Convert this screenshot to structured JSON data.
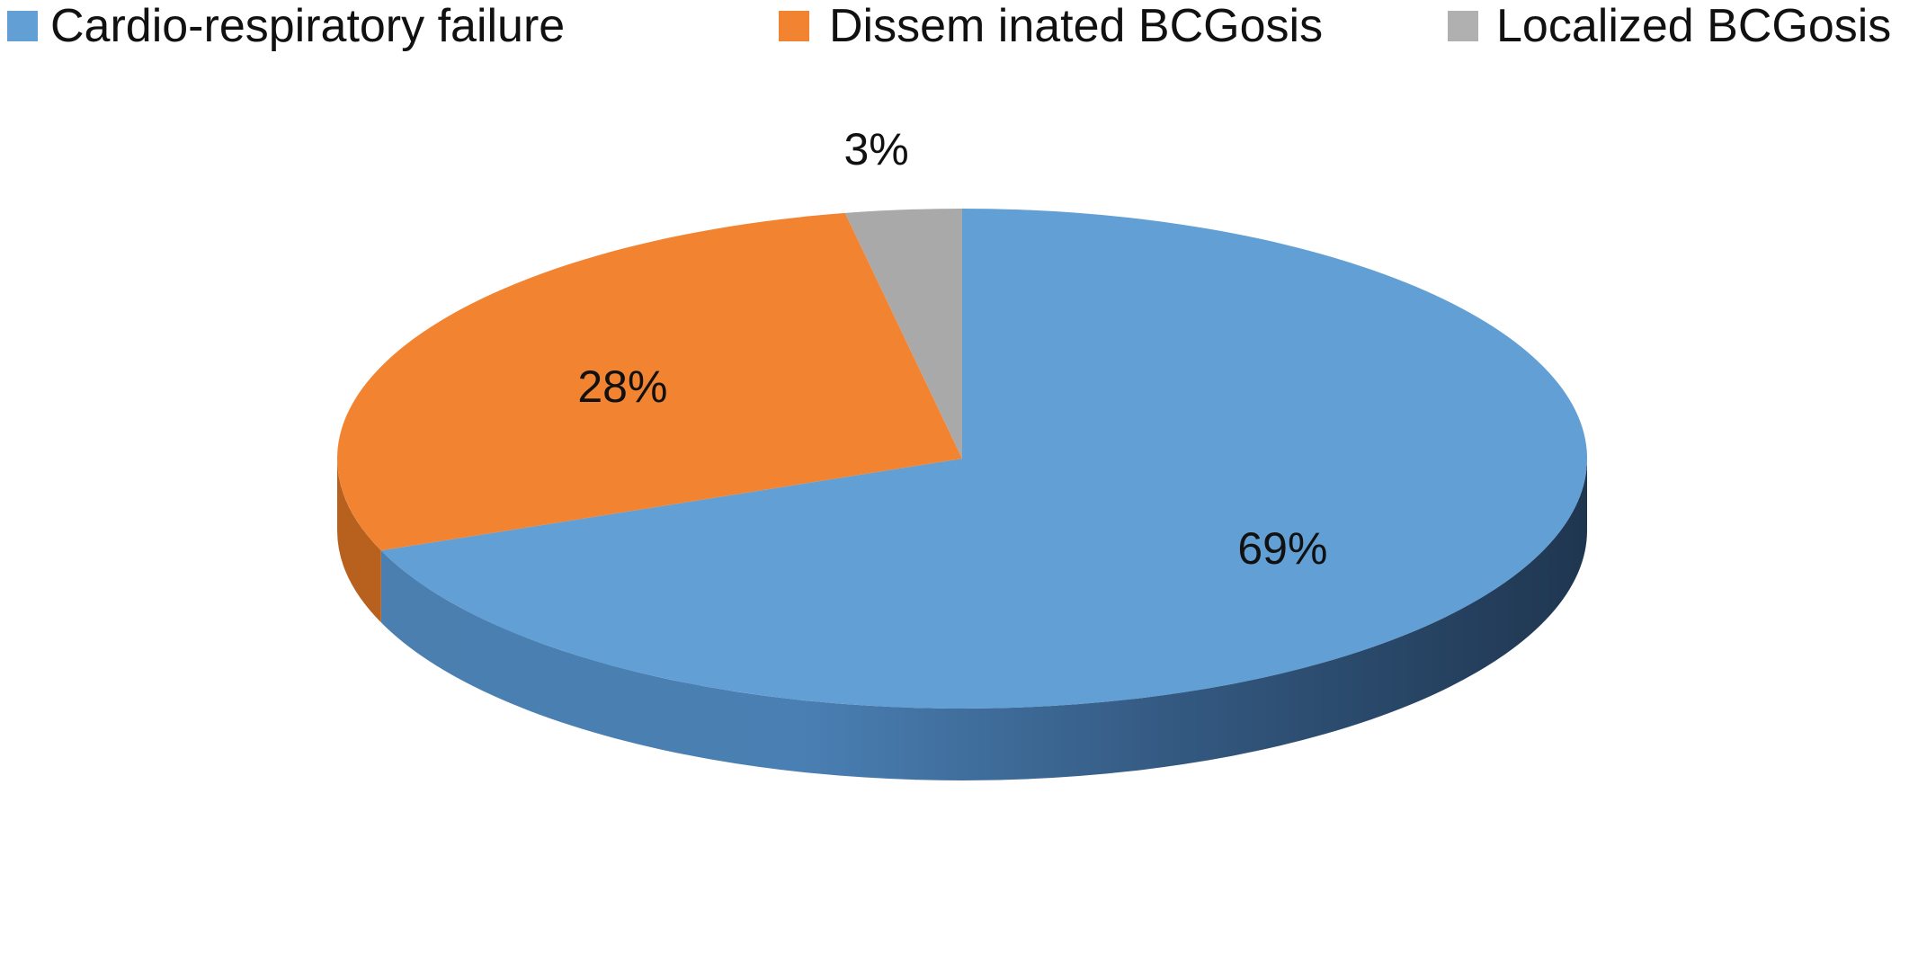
{
  "chart_data": {
    "type": "pie",
    "style": "3d",
    "legend_position": "top",
    "title": "",
    "series": [
      {
        "name": "Cardio-respiratory failure",
        "value": 69,
        "label": "69%",
        "color": "#629fd4",
        "side_color": "#3f6e99",
        "side_dark": "#26405c"
      },
      {
        "name": "Dissem inated BCGosis",
        "value": 28,
        "label": "28%",
        "color": "#f28331",
        "side_color": "#b8611f",
        "side_dark": "#8a4814"
      },
      {
        "name": "Localized BCGosis",
        "value": 3,
        "label": "3%",
        "color": "#a9a9a9",
        "side_color": "#7d7d7d",
        "side_dark": "#5a5a5a"
      }
    ]
  }
}
